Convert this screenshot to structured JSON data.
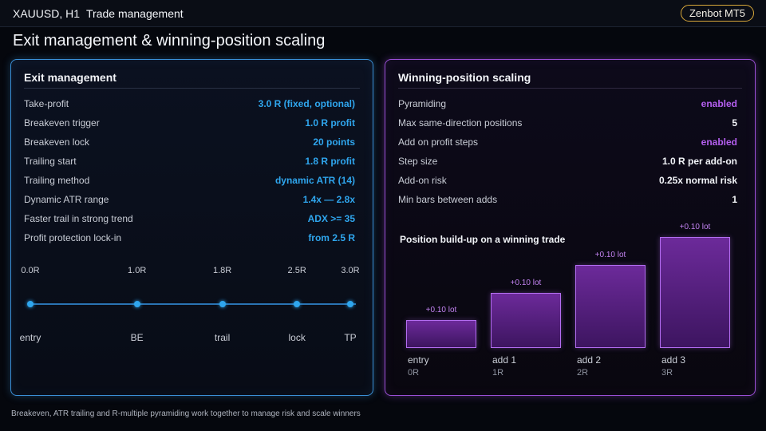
{
  "topbar": {
    "symbol": "XAUUSD, H1",
    "section": "Trade management",
    "brand": "Zenbot MT5"
  },
  "page_title": "Exit management & winning-position scaling",
  "exit_panel": {
    "title": "Exit management",
    "rows": [
      {
        "label": "Take-profit",
        "value": "3.0 R (fixed, optional)"
      },
      {
        "label": "Breakeven trigger",
        "value": "1.0 R profit"
      },
      {
        "label": "Breakeven lock",
        "value": "20 points"
      },
      {
        "label": "Trailing start",
        "value": "1.8 R profit"
      },
      {
        "label": "Trailing method",
        "value": "dynamic ATR (14)"
      },
      {
        "label": "Dynamic ATR range",
        "value": "1.4x — 2.8x"
      },
      {
        "label": "Faster trail in strong trend",
        "value": "ADX >= 35"
      },
      {
        "label": "Profit protection lock-in",
        "value": "from 2.5 R"
      }
    ],
    "timeline": [
      {
        "r": 0.0,
        "top": "0.0R",
        "bottom": "entry"
      },
      {
        "r": 1.0,
        "top": "1.0R",
        "bottom": "BE"
      },
      {
        "r": 1.8,
        "top": "1.8R",
        "bottom": "trail"
      },
      {
        "r": 2.5,
        "top": "2.5R",
        "bottom": "lock"
      },
      {
        "r": 3.0,
        "top": "3.0R",
        "bottom": "TP"
      }
    ],
    "accent_color": "#2fa6ee"
  },
  "scale_panel": {
    "title": "Winning-position scaling",
    "rows": [
      {
        "label": "Pyramiding",
        "value": "enabled",
        "accent": true
      },
      {
        "label": "Max same-direction positions",
        "value": "5",
        "accent": false
      },
      {
        "label": "Add on profit steps",
        "value": "enabled",
        "accent": true
      },
      {
        "label": "Step size",
        "value": "1.0 R per add-on",
        "accent": false
      },
      {
        "label": "Add-on risk",
        "value": "0.25x normal risk",
        "accent": false
      },
      {
        "label": "Min bars between adds",
        "value": "1",
        "accent": false
      }
    ],
    "accent_color": "#b55ff0"
  },
  "chart_data": {
    "type": "bar",
    "title": "Position build-up on a winning trade",
    "categories": [
      "entry",
      "add 1",
      "add 2",
      "add 3"
    ],
    "category_sublabels": [
      "0R",
      "1R",
      "2R",
      "3R"
    ],
    "values": [
      0.1,
      0.2,
      0.3,
      0.4
    ],
    "data_labels": [
      "+0.10 lot",
      "+0.10 lot",
      "+0.10 lot",
      "+0.10 lot"
    ],
    "ylim": [
      0,
      0.4
    ],
    "xlabel": "",
    "ylabel": ""
  },
  "footer": "Breakeven, ATR trailing and R-multiple pyramiding work together to manage risk and scale winners"
}
